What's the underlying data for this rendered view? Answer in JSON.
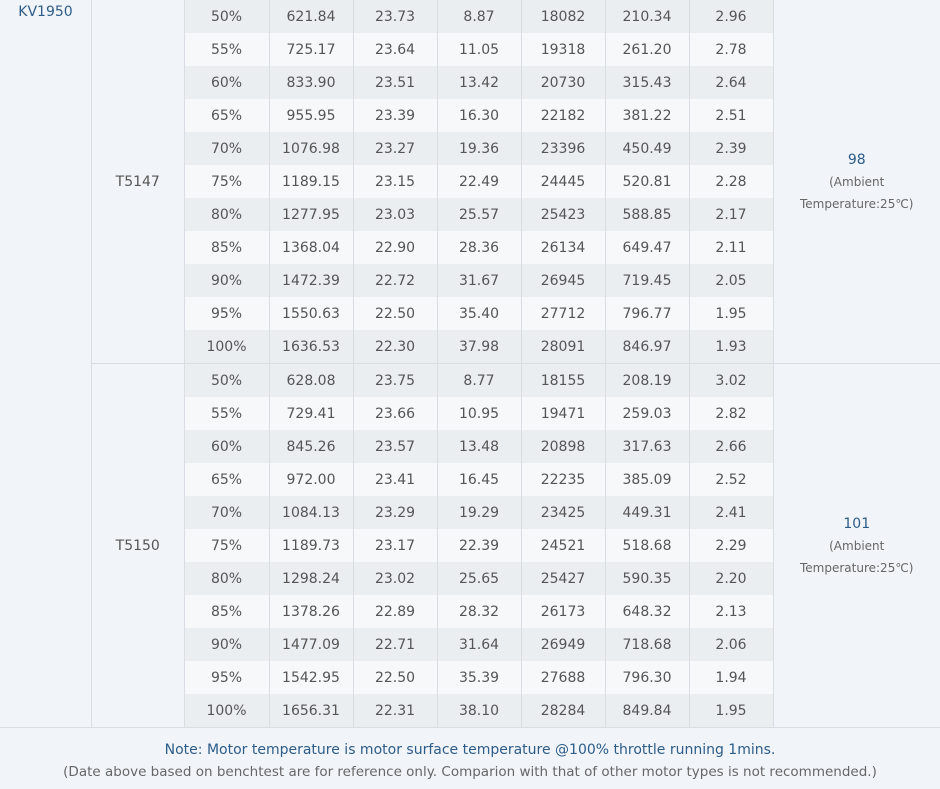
{
  "kv_label": "KV1950",
  "groups": [
    {
      "model": "T5147",
      "temp_value": "98",
      "temp_note_1": "(Ambient",
      "temp_note_2": "Temperature:25℃)",
      "rows": [
        [
          "50%",
          "621.84",
          "23.73",
          "8.87",
          "18082",
          "210.34",
          "2.96"
        ],
        [
          "55%",
          "725.17",
          "23.64",
          "11.05",
          "19318",
          "261.20",
          "2.78"
        ],
        [
          "60%",
          "833.90",
          "23.51",
          "13.42",
          "20730",
          "315.43",
          "2.64"
        ],
        [
          "65%",
          "955.95",
          "23.39",
          "16.30",
          "22182",
          "381.22",
          "2.51"
        ],
        [
          "70%",
          "1076.98",
          "23.27",
          "19.36",
          "23396",
          "450.49",
          "2.39"
        ],
        [
          "75%",
          "1189.15",
          "23.15",
          "22.49",
          "24445",
          "520.81",
          "2.28"
        ],
        [
          "80%",
          "1277.95",
          "23.03",
          "25.57",
          "25423",
          "588.85",
          "2.17"
        ],
        [
          "85%",
          "1368.04",
          "22.90",
          "28.36",
          "26134",
          "649.47",
          "2.11"
        ],
        [
          "90%",
          "1472.39",
          "22.72",
          "31.67",
          "26945",
          "719.45",
          "2.05"
        ],
        [
          "95%",
          "1550.63",
          "22.50",
          "35.40",
          "27712",
          "796.77",
          "1.95"
        ],
        [
          "100%",
          "1636.53",
          "22.30",
          "37.98",
          "28091",
          "846.97",
          "1.93"
        ]
      ]
    },
    {
      "model": "T5150",
      "temp_value": "101",
      "temp_note_1": "(Ambient",
      "temp_note_2": "Temperature:25℃)",
      "rows": [
        [
          "50%",
          "628.08",
          "23.75",
          "8.77",
          "18155",
          "208.19",
          "3.02"
        ],
        [
          "55%",
          "729.41",
          "23.66",
          "10.95",
          "19471",
          "259.03",
          "2.82"
        ],
        [
          "60%",
          "845.26",
          "23.57",
          "13.48",
          "20898",
          "317.63",
          "2.66"
        ],
        [
          "65%",
          "972.00",
          "23.41",
          "16.45",
          "22235",
          "385.09",
          "2.52"
        ],
        [
          "70%",
          "1084.13",
          "23.29",
          "19.29",
          "23425",
          "449.31",
          "2.41"
        ],
        [
          "75%",
          "1189.73",
          "23.17",
          "22.39",
          "24521",
          "518.68",
          "2.29"
        ],
        [
          "80%",
          "1298.24",
          "23.02",
          "25.65",
          "25427",
          "590.35",
          "2.20"
        ],
        [
          "85%",
          "1378.26",
          "22.89",
          "28.32",
          "26173",
          "648.32",
          "2.13"
        ],
        [
          "90%",
          "1477.09",
          "22.71",
          "31.64",
          "26949",
          "718.68",
          "2.06"
        ],
        [
          "95%",
          "1542.95",
          "22.50",
          "35.39",
          "27688",
          "796.30",
          "1.94"
        ],
        [
          "100%",
          "1656.31",
          "22.31",
          "38.10",
          "28284",
          "849.84",
          "1.95"
        ]
      ]
    }
  ],
  "footer": {
    "note": "Note: Motor temperature is motor surface temperature @100% throttle running 1mins.",
    "disclaimer": "(Date above based on benchtest are for reference only. Comparion with that of other motor types is not recommended.)"
  }
}
